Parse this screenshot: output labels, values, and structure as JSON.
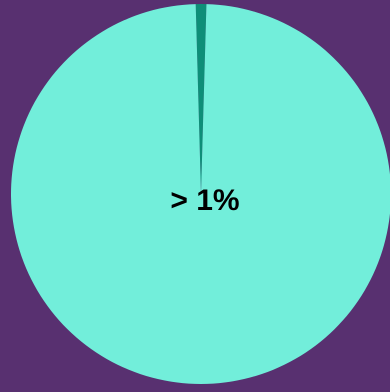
{
  "chart_data": {
    "type": "pie",
    "slices": [
      {
        "label": "",
        "value": 0.9,
        "color": "#0E8E78"
      },
      {
        "label": "",
        "value": 99.1,
        "color": "#72EEDA"
      }
    ],
    "center_text": "> 1%",
    "background_color": "#583070"
  }
}
